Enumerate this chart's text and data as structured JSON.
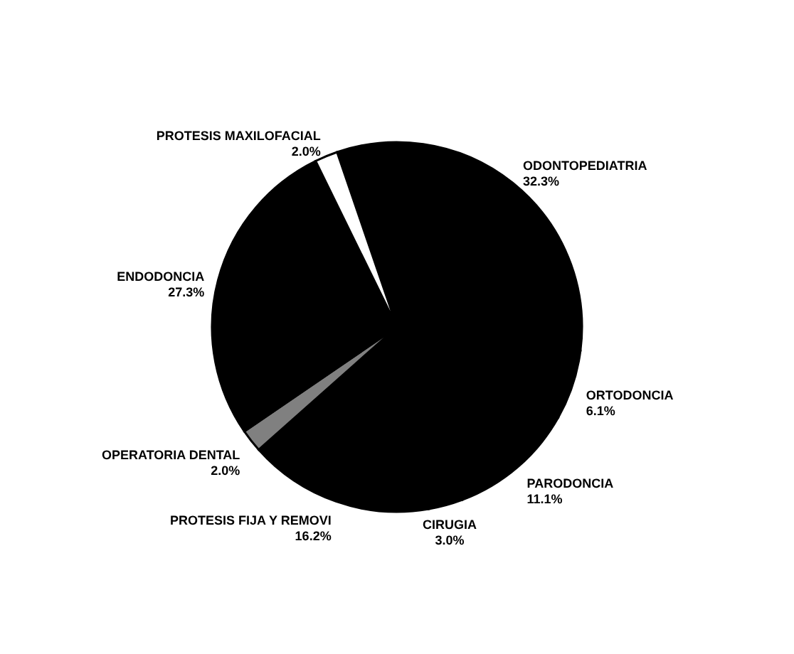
{
  "chart_data": {
    "type": "pie",
    "categories": [
      "ODONTOPEDIATRIA",
      "ORTODONCIA",
      "PARODONCIA",
      "CIRUGIA",
      "PROTESIS FIJA Y REMOVI",
      "OPERATORIA DENTAL",
      "ENDODONCIA",
      "PROTESIS MAXILOFACIAL"
    ],
    "values": [
      32.3,
      6.1,
      11.1,
      3.0,
      16.2,
      2.0,
      27.3,
      2.0
    ],
    "value_labels": [
      "32.3%",
      "6.1%",
      "11.1%",
      "3.0%",
      "16.2%",
      "2.0%",
      "27.3%",
      "2.0%"
    ],
    "colors": [
      "#000000",
      "#000000",
      "#000000",
      "#000000",
      "#000000",
      "#808080",
      "#000000",
      "#ffffff"
    ]
  }
}
